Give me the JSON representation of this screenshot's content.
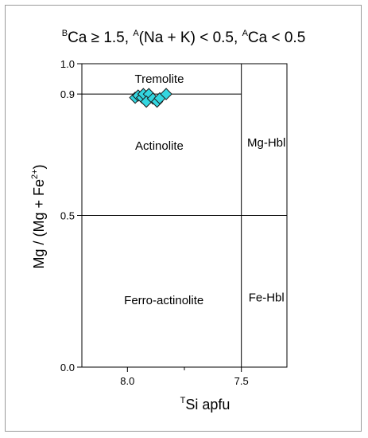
{
  "chart_data": {
    "type": "scatter",
    "title": "ᴮCa ≥ 1.5, ᴬ(Na + K) < 0.5, ᴬCa < 0.5",
    "title_parts": {
      "sup1": "B",
      "t1": "Ca ≥ 1.5, ",
      "sup2": "A",
      "t2": "(Na + K) < 0.5, ",
      "sup3": "A",
      "t3": "Ca < 0.5"
    },
    "xlabel_parts": {
      "sup": "T",
      "text": "Si apfu"
    },
    "ylabel_parts": {
      "main": "Mg / (Mg + Fe",
      "sup": "2+",
      "close": ")"
    },
    "xlim": [
      8.2,
      7.3
    ],
    "ylim": [
      0.0,
      1.0
    ],
    "x_reversed": true,
    "x_ticks": [
      "8.0",
      "7.5"
    ],
    "x_minor_ticks": [
      7.75
    ],
    "y_ticks": [
      "0.0",
      "0.5",
      "0.9",
      "1.0"
    ],
    "boundaries": {
      "x_divider": 7.5,
      "y_dividers": [
        0.5,
        0.9
      ]
    },
    "fields": [
      {
        "name": "Tremolite",
        "x": 7.86,
        "y": 0.95
      },
      {
        "name": "Actinolite",
        "x": 7.86,
        "y": 0.73
      },
      {
        "name": "Mg-Hbl",
        "x": 7.39,
        "y": 0.74
      },
      {
        "name": "Ferro-actinolite",
        "x": 7.84,
        "y": 0.22
      },
      {
        "name": "Fe-Hbl",
        "x": 7.39,
        "y": 0.23
      }
    ],
    "marker": {
      "shape": "diamond",
      "fill": "#33d6e0",
      "stroke": "#1a1a1a"
    },
    "points": [
      {
        "x": 7.966,
        "y": 0.888
      },
      {
        "x": 7.953,
        "y": 0.895
      },
      {
        "x": 7.936,
        "y": 0.888
      },
      {
        "x": 7.93,
        "y": 0.9
      },
      {
        "x": 7.906,
        "y": 0.9
      },
      {
        "x": 7.917,
        "y": 0.875
      },
      {
        "x": 7.888,
        "y": 0.885
      },
      {
        "x": 7.87,
        "y": 0.875
      },
      {
        "x": 7.858,
        "y": 0.886
      },
      {
        "x": 7.83,
        "y": 0.9
      }
    ]
  }
}
